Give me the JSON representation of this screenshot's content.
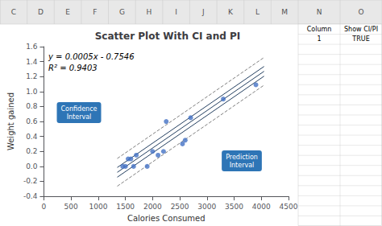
{
  "chart_data": {
    "type": "scatter",
    "title": "Scatter Plot With CI and PI",
    "xlabel": "Calories Consumed",
    "ylabel": "Weight gained",
    "xlim": [
      0,
      4500
    ],
    "ylim": [
      -0.4,
      1.6
    ],
    "xticks": [
      0,
      500,
      1000,
      1500,
      2000,
      2500,
      3000,
      3500,
      4000,
      4500
    ],
    "yticks": [
      -0.4,
      -0.2,
      {
        "value": 0,
        "label": "0.0"
      },
      0.2,
      0.4,
      0.6,
      0.8,
      {
        "value": 1.0,
        "label": "1.0"
      },
      1.2,
      1.4,
      1.6
    ],
    "grid": false,
    "series": [
      {
        "type": "scatter",
        "color": "#4472C4",
        "marker": "circle",
        "x": [
          1450,
          1500,
          1550,
          1600,
          1650,
          1700,
          1900,
          2000,
          2100,
          2200,
          2250,
          2550,
          2600,
          2700,
          3300,
          3900
        ],
        "values": [
          0.0,
          0.0,
          0.1,
          0.1,
          0.0,
          0.15,
          0.0,
          0.2,
          0.15,
          0.2,
          0.6,
          0.3,
          0.35,
          0.65,
          0.9,
          1.09
        ]
      },
      {
        "type": "line",
        "color": "#243F60",
        "line_style": "solid",
        "x": [
          1350,
          4050
        ],
        "values": [
          -0.0796,
          1.2704
        ]
      },
      {
        "type": "line",
        "color": "#243F60",
        "line_style": "solid",
        "x": [
          1350,
          4050
        ],
        "values": [
          -0.0146,
          1.3354
        ]
      },
      {
        "type": "line",
        "color": "#243F60",
        "line_style": "solid",
        "x": [
          1350,
          4050
        ],
        "values": [
          -0.1446,
          1.2054
        ]
      },
      {
        "type": "line",
        "color": "#808080",
        "line_style": "dashed",
        "x": [
          1350,
          4050
        ],
        "values": [
          0.1054,
          1.4554
        ]
      },
      {
        "type": "line",
        "color": "#808080",
        "line_style": "dashed",
        "x": [
          1350,
          4050
        ],
        "values": [
          -0.2646,
          1.0854
        ]
      }
    ],
    "annotations": [
      "y = 0.0005x - 0.7546",
      "R² = 0.9403",
      "Confidence\nInterval",
      "Prediction\nInterval"
    ],
    "column_headers": [
      "C",
      "D",
      "E",
      "F",
      "G",
      "H",
      "I",
      "J",
      "K",
      "L",
      "M",
      "N",
      "O"
    ],
    "table": [
      [
        "Column",
        "Show CI/PI"
      ],
      [
        "1",
        "TRUE"
      ]
    ]
  }
}
